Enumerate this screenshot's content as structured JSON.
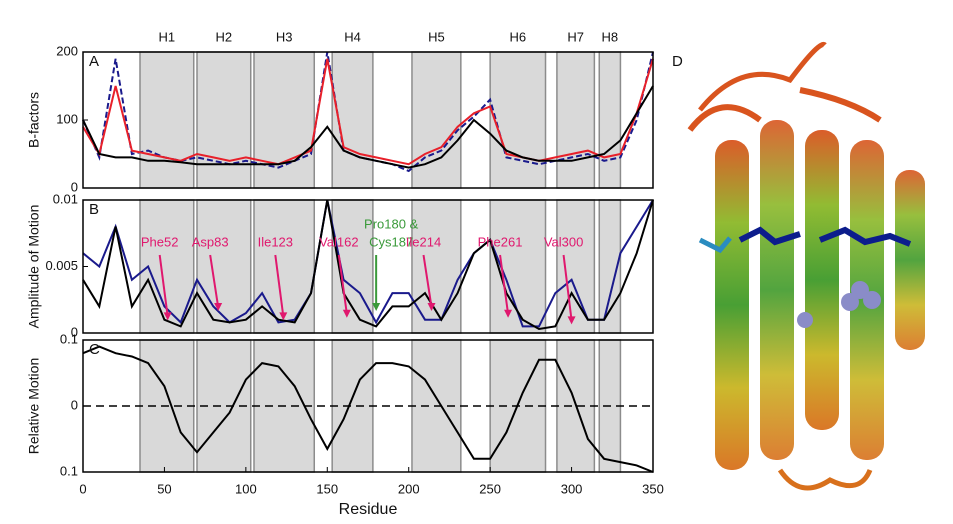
{
  "helices": [
    {
      "label": "H1",
      "start": 35,
      "end": 68
    },
    {
      "label": "H2",
      "start": 70,
      "end": 103
    },
    {
      "label": "H3",
      "start": 105,
      "end": 142
    },
    {
      "label": "H4",
      "start": 153,
      "end": 178
    },
    {
      "label": "H5",
      "start": 202,
      "end": 232
    },
    {
      "label": "H6",
      "start": 250,
      "end": 284
    },
    {
      "label": "H7",
      "start": 291,
      "end": 314
    },
    {
      "label": "H8",
      "start": 317,
      "end": 330
    }
  ],
  "panel_d": {
    "label": "D"
  },
  "chart_data": [
    {
      "type": "line",
      "panel_label": "A",
      "ylabel": "B-factors",
      "xlim": [
        0,
        350
      ],
      "ylim": [
        0,
        200
      ],
      "yticks": [
        0,
        100,
        200
      ],
      "x": [
        0,
        10,
        20,
        30,
        40,
        50,
        60,
        70,
        80,
        90,
        100,
        110,
        120,
        130,
        140,
        150,
        160,
        170,
        180,
        190,
        200,
        210,
        220,
        230,
        240,
        250,
        260,
        270,
        280,
        290,
        300,
        310,
        320,
        330,
        340,
        350
      ],
      "series": [
        {
          "color": "#1a1a8c",
          "dash": true,
          "values": [
            100,
            45,
            190,
            50,
            55,
            45,
            40,
            45,
            40,
            35,
            40,
            35,
            30,
            40,
            50,
            200,
            55,
            45,
            40,
            35,
            25,
            45,
            55,
            85,
            105,
            130,
            45,
            40,
            35,
            40,
            45,
            50,
            40,
            45,
            100,
            200
          ]
        },
        {
          "color": "#e8202a",
          "values": [
            90,
            50,
            150,
            55,
            50,
            45,
            40,
            50,
            45,
            40,
            45,
            40,
            35,
            45,
            55,
            190,
            60,
            50,
            45,
            40,
            35,
            50,
            60,
            90,
            110,
            120,
            50,
            45,
            40,
            45,
            50,
            55,
            45,
            50,
            110,
            190
          ]
        },
        {
          "color": "#000000",
          "values": [
            100,
            50,
            45,
            45,
            40,
            40,
            38,
            35,
            35,
            35,
            35,
            35,
            35,
            40,
            60,
            90,
            55,
            45,
            40,
            35,
            30,
            35,
            45,
            70,
            100,
            80,
            55,
            45,
            40,
            40,
            40,
            45,
            50,
            70,
            110,
            150
          ]
        }
      ]
    },
    {
      "type": "line",
      "panel_label": "B",
      "ylabel": "Amplitude of Motion",
      "xlim": [
        0,
        350
      ],
      "ylim": [
        0,
        0.01
      ],
      "yticks": [
        0,
        0.005,
        0.01
      ],
      "x": [
        0,
        10,
        20,
        30,
        40,
        50,
        60,
        70,
        80,
        90,
        100,
        110,
        120,
        130,
        140,
        150,
        160,
        170,
        180,
        190,
        200,
        210,
        220,
        230,
        240,
        250,
        260,
        270,
        280,
        290,
        300,
        310,
        320,
        330,
        340,
        350
      ],
      "series": [
        {
          "color": "#1a1a8c",
          "values": [
            0.006,
            0.005,
            0.008,
            0.004,
            0.005,
            0.002,
            0.0008,
            0.004,
            0.002,
            0.0008,
            0.0015,
            0.003,
            0.0008,
            0.001,
            0.003,
            0.01,
            0.004,
            0.003,
            0.0008,
            0.003,
            0.003,
            0.001,
            0.001,
            0.004,
            0.006,
            0.007,
            0.004,
            0.0005,
            0.0005,
            0.003,
            0.004,
            0.001,
            0.001,
            0.006,
            0.008,
            0.01
          ]
        },
        {
          "color": "#000000",
          "values": [
            0.004,
            0.002,
            0.008,
            0.002,
            0.004,
            0.001,
            0.0005,
            0.003,
            0.001,
            0.0008,
            0.001,
            0.002,
            0.001,
            0.0008,
            0.003,
            0.01,
            0.003,
            0.001,
            0.0005,
            0.002,
            0.002,
            0.003,
            0.001,
            0.003,
            0.006,
            0.007,
            0.003,
            0.001,
            0.0003,
            0.0005,
            0.003,
            0.001,
            0.001,
            0.003,
            0.006,
            0.01
          ]
        }
      ],
      "annotations": [
        {
          "lines": [
            "Phe52"
          ],
          "x": 52,
          "y": 0.0008,
          "color": "#e0186e"
        },
        {
          "lines": [
            "Asp83"
          ],
          "x": 83,
          "y": 0.0015,
          "color": "#e0186e"
        },
        {
          "lines": [
            "Ile123"
          ],
          "x": 123,
          "y": 0.0008,
          "color": "#e0186e"
        },
        {
          "lines": [
            "Val162"
          ],
          "x": 162,
          "y": 0.001,
          "color": "#e0186e"
        },
        {
          "lines": [
            "Pro180 &",
            "Cys187"
          ],
          "x": 180,
          "y": 0.0015,
          "color": "#3a9a3a"
        },
        {
          "lines": [
            "Ile214"
          ],
          "x": 214,
          "y": 0.0015,
          "color": "#e0186e"
        },
        {
          "lines": [
            "Phe261"
          ],
          "x": 261,
          "y": 0.001,
          "color": "#e0186e"
        },
        {
          "lines": [
            "Val300"
          ],
          "x": 300,
          "y": 0.0005,
          "color": "#e0186e"
        }
      ]
    },
    {
      "type": "line",
      "panel_label": "C",
      "ylabel": "Relative Motion",
      "xlabel": "Residue",
      "xlim": [
        0,
        350
      ],
      "ylim": [
        -0.1,
        0.1
      ],
      "yticks": [
        {
          "value": -0.1,
          "label": "0.1"
        },
        0,
        0.1
      ],
      "xticks": [
        0,
        50,
        100,
        150,
        200,
        250,
        300,
        350
      ],
      "reference_line": 0,
      "x": [
        0,
        10,
        20,
        30,
        40,
        50,
        60,
        70,
        80,
        90,
        100,
        110,
        120,
        130,
        140,
        150,
        160,
        170,
        180,
        190,
        200,
        210,
        220,
        230,
        240,
        250,
        260,
        270,
        280,
        290,
        300,
        310,
        320,
        330,
        340,
        350
      ],
      "series": [
        {
          "color": "#000000",
          "values": [
            0.08,
            0.09,
            0.08,
            0.075,
            0.065,
            0.03,
            -0.04,
            -0.07,
            -0.04,
            -0.01,
            0.04,
            0.065,
            0.06,
            0.03,
            -0.02,
            -0.065,
            -0.02,
            0.04,
            0.065,
            0.065,
            0.06,
            0.04,
            0.0,
            -0.04,
            -0.08,
            -0.08,
            -0.04,
            0.02,
            0.07,
            0.07,
            0.02,
            -0.05,
            -0.08,
            -0.085,
            -0.09,
            -0.1
          ]
        }
      ]
    }
  ]
}
